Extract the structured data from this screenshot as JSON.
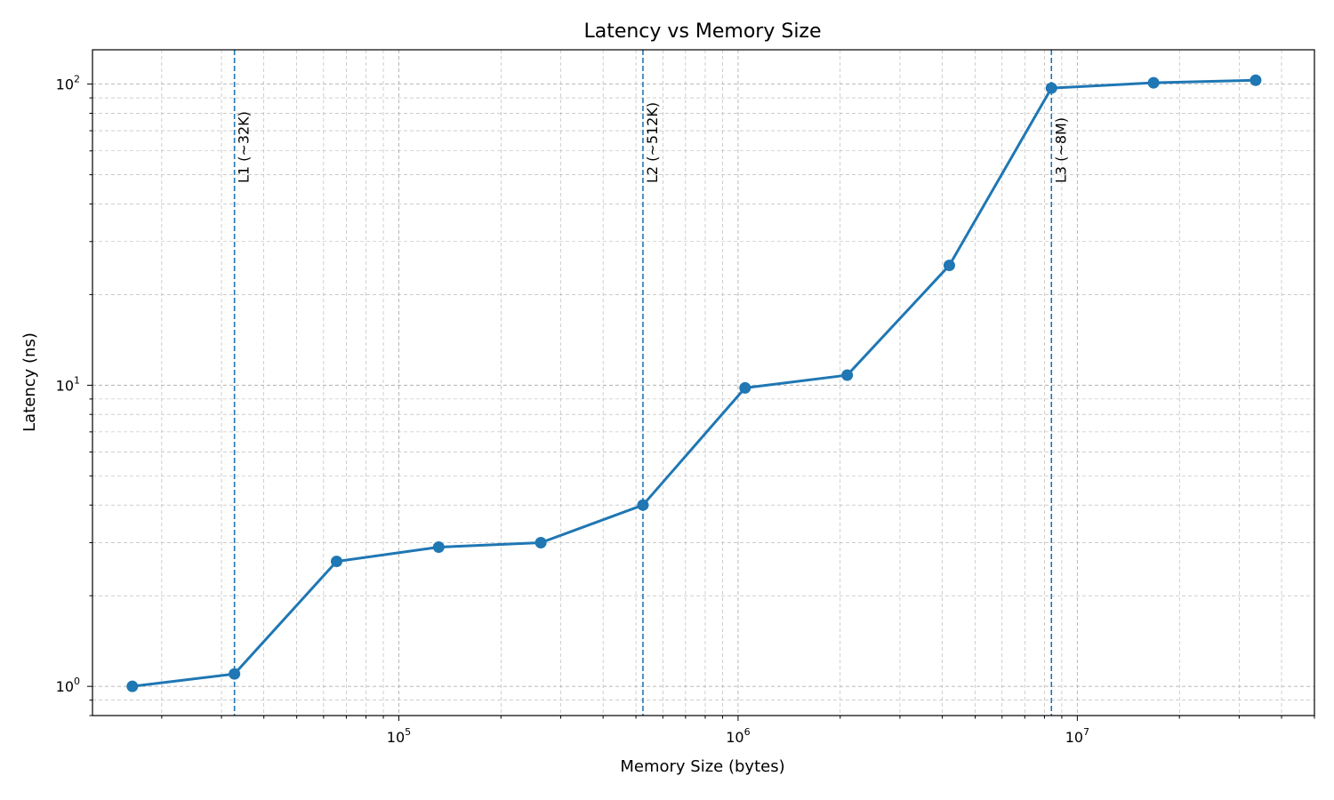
{
  "chart_data": {
    "type": "line",
    "title": "Latency vs Memory Size",
    "xlabel": "Memory Size (bytes)",
    "ylabel": "Latency (ns)",
    "xscale": "log",
    "yscale": "log",
    "xlim": [
      12500,
      50000000
    ],
    "ylim": [
      0.8,
      130
    ],
    "grid": "both major and minor, dashed",
    "x_ticks": [
      {
        "value": 100000,
        "base": "10",
        "exp": "5"
      },
      {
        "value": 1000000,
        "base": "10",
        "exp": "6"
      },
      {
        "value": 10000000,
        "base": "10",
        "exp": "7"
      }
    ],
    "y_ticks": [
      {
        "value": 1,
        "base": "10",
        "exp": "0"
      },
      {
        "value": 10,
        "base": "10",
        "exp": "1"
      },
      {
        "value": 100,
        "base": "10",
        "exp": "2"
      }
    ],
    "series": [
      {
        "color": "#1f77b4",
        "x": [
          16384,
          32768,
          65536,
          131072,
          262144,
          524288,
          1048576,
          2097152,
          4194304,
          8388608,
          16777216,
          33554432
        ],
        "y": [
          1.0,
          1.1,
          2.6,
          2.9,
          3.0,
          4.0,
          9.8,
          10.8,
          25.0,
          97.0,
          101.0,
          103.0
        ]
      }
    ],
    "vlines": [
      {
        "x": 32768,
        "label": "L1 (~32K)",
        "color": "#1f77b4"
      },
      {
        "x": 524288,
        "label": "L2 (~512K)",
        "color": "#1f77b4"
      },
      {
        "x": 8388608,
        "label": "L3 (~8M)",
        "color": "#1f77b4"
      }
    ]
  }
}
